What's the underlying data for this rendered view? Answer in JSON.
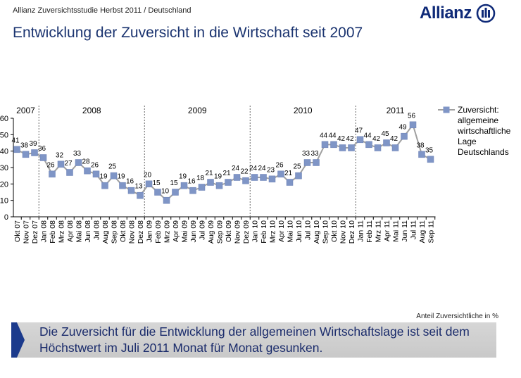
{
  "header": {
    "subtitle": "Allianz Zuversichtsstudie Herbst 2011 / Deutschland",
    "logo_text": "Allianz",
    "title": "Entwicklung der Zuversicht in die Wirtschaft seit 2007"
  },
  "chart_data": {
    "type": "line",
    "title": "",
    "xlabel": "",
    "ylabel": "",
    "ylim": [
      0,
      60
    ],
    "yticks": [
      0,
      10,
      20,
      30,
      40,
      50,
      60
    ],
    "grid": false,
    "legend_position": "right",
    "marker": "square",
    "color": "#7f95c6",
    "line_color": "#a0a0a0",
    "year_groups": [
      {
        "label": "2007",
        "count": 3
      },
      {
        "label": "2008",
        "count": 12
      },
      {
        "label": "2009",
        "count": 12
      },
      {
        "label": "2010",
        "count": 12
      },
      {
        "label": "2011",
        "count": 9
      }
    ],
    "categories": [
      "Okt 07",
      "Nov 07",
      "Dez 07",
      "Jan 08",
      "Feb 08",
      "Mrz 08",
      "Apr 08",
      "Mai 08",
      "Jun 08",
      "Jul 08",
      "Aug 08",
      "Sep 08",
      "Okt 08",
      "Nov 08",
      "Dez 08",
      "Jan 09",
      "Feb 09",
      "Mrz 09",
      "Apr 09",
      "Mai 09",
      "Jun 09",
      "Jul 09",
      "Aug 09",
      "Sep 09",
      "Okt 09",
      "Nov 09",
      "Dez 09",
      "Jan 10",
      "Feb 10",
      "Mrz 10",
      "Apr 10",
      "Mai 10",
      "Jun 10",
      "Jul 10",
      "Aug 10",
      "Sep 10",
      "Okt 10",
      "Nov 10",
      "Dez 10",
      "Jan 11",
      "Feb 11",
      "Mrz 11",
      "Apr 11",
      "Mai 11",
      "Jun 11",
      "Jul 11",
      "Aug 11",
      "Sep 11"
    ],
    "series": [
      {
        "name": "Zuversicht: allgemeine wirtschaftliche Lage Deutschlands",
        "legend_lines": [
          "Zuversicht:",
          "allgemeine",
          "wirtschaftliche",
          "Lage",
          "Deutschlands"
        ],
        "values": [
          41,
          38,
          39,
          36,
          26,
          32,
          27,
          33,
          28,
          26,
          19,
          25,
          19,
          16,
          13,
          20,
          15,
          10,
          15,
          19,
          16,
          18,
          21,
          19,
          21,
          24,
          22,
          24,
          24,
          23,
          26,
          21,
          25,
          33,
          33,
          44,
          44,
          42,
          42,
          47,
          44,
          42,
          45,
          42,
          49,
          56,
          38,
          35
        ]
      }
    ],
    "annotation": "Anteil Zuversichtliche in %"
  },
  "callout": {
    "text": "Die Zuversicht für die Entwicklung der allgemeinen Wirtschaftslage ist seit dem Höchstwert im Juli 2011 Monat für Monat gesunken."
  }
}
